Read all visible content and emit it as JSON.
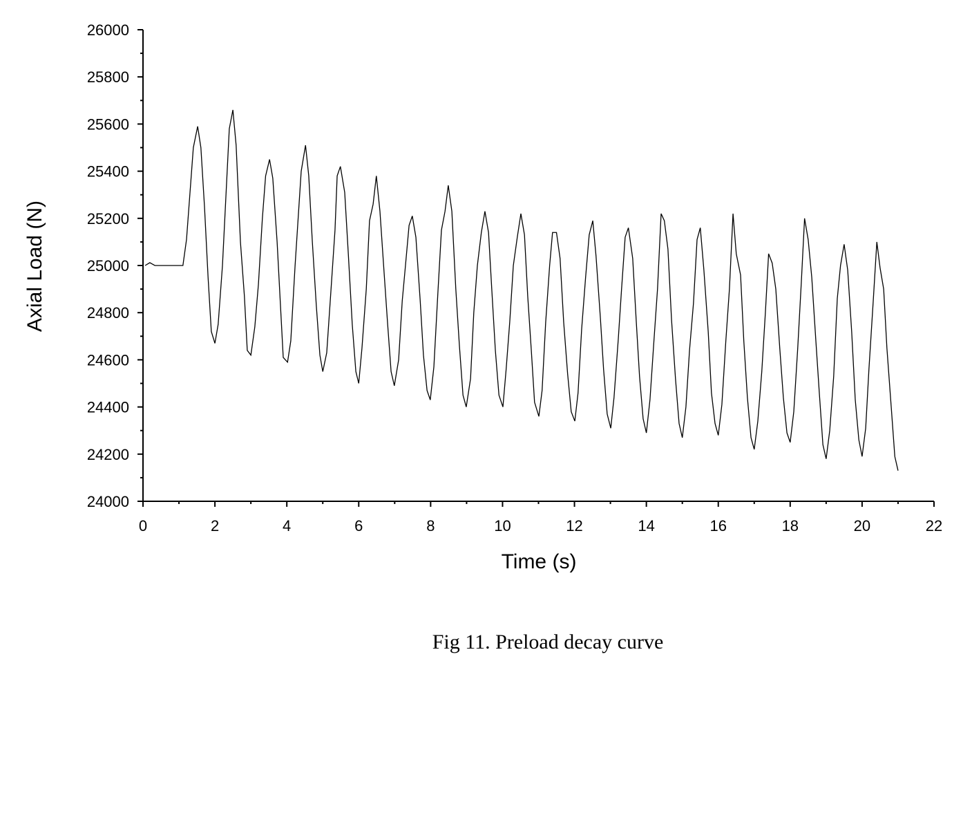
{
  "chart_data": {
    "type": "line",
    "x_label": "Time (s)",
    "y_label": "Axial Load (N)",
    "caption": "Fig 11. Preload decay curve",
    "color": "#000000",
    "xlim": [
      0,
      22
    ],
    "xticks": [
      0,
      2,
      4,
      6,
      8,
      10,
      12,
      14,
      16,
      18,
      20,
      22
    ],
    "ylim": [
      24000,
      26000
    ],
    "yticks": [
      24000,
      24200,
      24400,
      24600,
      24800,
      25000,
      25200,
      25400,
      25600,
      25800,
      26000
    ],
    "x": [
      0.06,
      0.19,
      0.33,
      1.11,
      1.21,
      1.4,
      1.52,
      1.61,
      1.71,
      1.81,
      1.9,
      2.0,
      2.09,
      2.21,
      2.4,
      2.5,
      2.59,
      2.71,
      2.82,
      2.9,
      3.0,
      3.11,
      3.21,
      3.32,
      3.41,
      3.52,
      3.61,
      3.73,
      3.82,
      3.9,
      4.02,
      4.11,
      4.23,
      4.4,
      4.52,
      4.61,
      4.71,
      4.82,
      4.92,
      5.0,
      5.11,
      5.23,
      5.34,
      5.4,
      5.49,
      5.61,
      5.71,
      5.82,
      5.92,
      6.0,
      6.09,
      6.21,
      6.3,
      6.4,
      6.49,
      6.59,
      6.71,
      6.8,
      6.9,
      6.99,
      7.11,
      7.21,
      7.3,
      7.4,
      7.49,
      7.59,
      7.71,
      7.8,
      7.9,
      7.99,
      8.09,
      8.2,
      8.3,
      8.4,
      8.49,
      8.59,
      8.7,
      8.8,
      8.9,
      8.99,
      9.11,
      9.2,
      9.3,
      9.41,
      9.51,
      9.61,
      9.7,
      9.8,
      9.9,
      10.01,
      10.1,
      10.2,
      10.3,
      10.41,
      10.51,
      10.61,
      10.7,
      10.8,
      10.89,
      11.01,
      11.1,
      11.2,
      11.31,
      11.39,
      11.5,
      11.6,
      11.7,
      11.81,
      11.91,
      12.01,
      12.1,
      12.2,
      12.31,
      12.41,
      12.51,
      12.6,
      12.72,
      12.81,
      12.91,
      13.01,
      13.1,
      13.22,
      13.31,
      13.41,
      13.5,
      13.62,
      13.72,
      13.81,
      13.91,
      14.0,
      14.1,
      14.21,
      14.31,
      14.41,
      14.5,
      14.6,
      14.7,
      14.81,
      14.91,
      15.0,
      15.1,
      15.2,
      15.31,
      15.41,
      15.5,
      15.6,
      15.72,
      15.81,
      15.91,
      16.0,
      16.1,
      16.21,
      16.31,
      16.41,
      16.5,
      16.62,
      16.71,
      16.81,
      16.91,
      17.0,
      17.1,
      17.21,
      17.31,
      17.4,
      17.5,
      17.6,
      17.71,
      17.81,
      17.91,
      18.0,
      18.1,
      18.21,
      18.31,
      18.4,
      18.5,
      18.6,
      18.71,
      18.81,
      18.91,
      19.0,
      19.1,
      19.21,
      19.31,
      19.4,
      19.5,
      19.6,
      19.71,
      19.81,
      19.91,
      20.0,
      20.1,
      20.19,
      20.31,
      20.41,
      20.5,
      20.6,
      20.69,
      20.81,
      20.91,
      21.0
    ],
    "values": [
      25000,
      25012,
      25000,
      25000,
      25110,
      25500,
      25590,
      25500,
      25250,
      24950,
      24720,
      24670,
      24750,
      25000,
      25580,
      25660,
      25510,
      25100,
      24870,
      24640,
      24620,
      24740,
      24920,
      25200,
      25380,
      25450,
      25370,
      25100,
      24840,
      24610,
      24590,
      24680,
      25000,
      25400,
      25510,
      25380,
      25100,
      24830,
      24620,
      24550,
      24630,
      24900,
      25150,
      25380,
      25420,
      25310,
      25050,
      24750,
      24550,
      24500,
      24650,
      24900,
      25190,
      25260,
      25380,
      25230,
      24960,
      24760,
      24550,
      24490,
      24600,
      24850,
      25000,
      25170,
      25210,
      25120,
      24850,
      24620,
      24470,
      24430,
      24570,
      24880,
      25150,
      25230,
      25340,
      25230,
      24900,
      24660,
      24450,
      24400,
      24520,
      24800,
      25000,
      25140,
      25230,
      25140,
      24900,
      24640,
      24450,
      24400,
      24560,
      24760,
      25000,
      25120,
      25220,
      25130,
      24870,
      24640,
      24420,
      24360,
      24470,
      24760,
      25000,
      25140,
      25140,
      25030,
      24760,
      24540,
      24380,
      24340,
      24460,
      24730,
      24950,
      25130,
      25190,
      25040,
      24780,
      24560,
      24370,
      24310,
      24440,
      24690,
      24900,
      25120,
      25160,
      25030,
      24760,
      24530,
      24350,
      24290,
      24430,
      24680,
      24900,
      25220,
      25190,
      25070,
      24770,
      24520,
      24330,
      24270,
      24400,
      24640,
      24840,
      25110,
      25160,
      24980,
      24720,
      24460,
      24330,
      24280,
      24410,
      24680,
      24900,
      25220,
      25050,
      24960,
      24680,
      24440,
      24270,
      24220,
      24340,
      24550,
      24800,
      25050,
      25010,
      24900,
      24650,
      24440,
      24290,
      24250,
      24380,
      24650,
      24930,
      25200,
      25110,
      24950,
      24690,
      24460,
      24240,
      24180,
      24300,
      24530,
      24860,
      25000,
      25090,
      24980,
      24720,
      24430,
      24260,
      24190,
      24310,
      24560,
      24850,
      25100,
      24990,
      24900,
      24650,
      24400,
      24190,
      24130
    ]
  }
}
